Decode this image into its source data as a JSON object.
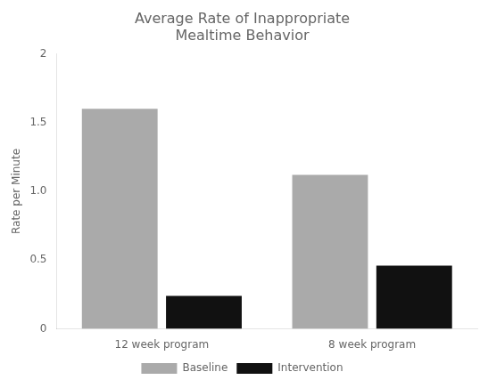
{
  "chart_data": {
    "type": "bar",
    "title": "Average Rate of Inappropriate\nMealtime Behavior",
    "ylabel": "Rate per Minute",
    "categories": [
      "12 week program",
      "8 week program"
    ],
    "series": [
      {
        "name": "Baseline",
        "color": "#aaaaaa",
        "values": [
          1.6,
          1.12
        ]
      },
      {
        "name": "Intervention",
        "color": "#111111",
        "values": [
          0.24,
          0.46
        ]
      }
    ],
    "ylim": [
      0,
      2
    ],
    "yticks": [
      0,
      0.5,
      {
        "value": 1,
        "label": "1.0"
      },
      1.5,
      2
    ],
    "grid": false,
    "legend": "bottom"
  }
}
